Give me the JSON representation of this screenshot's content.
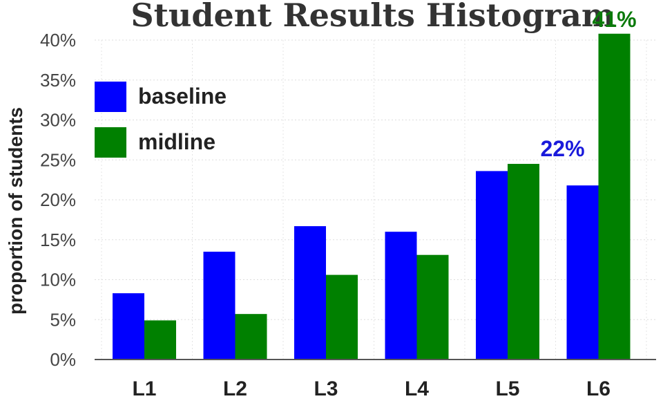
{
  "chart_data": {
    "type": "bar",
    "title": "Student Results Histogram",
    "ylabel": "proportion of students",
    "xlabel": "",
    "categories": [
      "L1",
      "L2",
      "L3",
      "L4",
      "L5",
      "L6"
    ],
    "series": [
      {
        "name": "baseline",
        "color": "#0000ff",
        "values": [
          8.3,
          13.5,
          16.7,
          16.0,
          23.6,
          21.8
        ]
      },
      {
        "name": "midline",
        "color": "#008000",
        "values": [
          4.9,
          5.7,
          10.6,
          13.1,
          24.5,
          40.8
        ]
      }
    ],
    "ylim": [
      0,
      40
    ],
    "yticks": [
      0,
      5,
      10,
      15,
      20,
      25,
      30,
      35,
      40
    ],
    "ytick_labels": [
      "0%",
      "5%",
      "10%",
      "15%",
      "20%",
      "25%",
      "30%",
      "35%",
      "40%"
    ],
    "annotations": [
      {
        "text": "22%",
        "series": "baseline",
        "category": "L6",
        "color": "#1a1adb"
      },
      {
        "text": "41%",
        "series": "midline",
        "category": "L6",
        "color": "#0a7a0a"
      }
    ],
    "legend_position": "top-left",
    "grid": true
  }
}
